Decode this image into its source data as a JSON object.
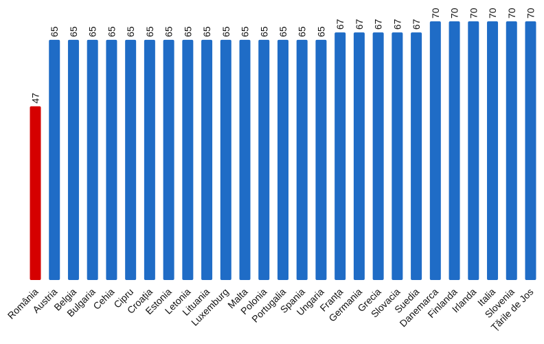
{
  "chart_data": {
    "type": "bar",
    "title": "",
    "xlabel": "",
    "ylabel": "",
    "ylim": [
      0,
      70
    ],
    "grid": false,
    "legend": "none",
    "colors": {
      "highlight": "#d50000",
      "default": "#1f6cc6"
    },
    "highlight_category": "România",
    "categories": [
      "România",
      "Austria",
      "Belgia",
      "Bulgaria",
      "Cehia",
      "Cipru",
      "Croația",
      "Estonia",
      "Letonia",
      "Lituania",
      "Luxemburg",
      "Malta",
      "Polonia",
      "Portugalia",
      "Spania",
      "Ungaria",
      "Franța",
      "Germania",
      "Grecia",
      "Slovacia",
      "Suedia",
      "Danemarca",
      "Finlanda",
      "Irlanda",
      "Italia",
      "Slovenia",
      "Țările de Jos"
    ],
    "values": [
      47,
      65,
      65,
      65,
      65,
      65,
      65,
      65,
      65,
      65,
      65,
      65,
      65,
      65,
      65,
      65,
      67,
      67,
      67,
      67,
      67,
      70,
      70,
      70,
      70,
      70,
      70
    ]
  }
}
